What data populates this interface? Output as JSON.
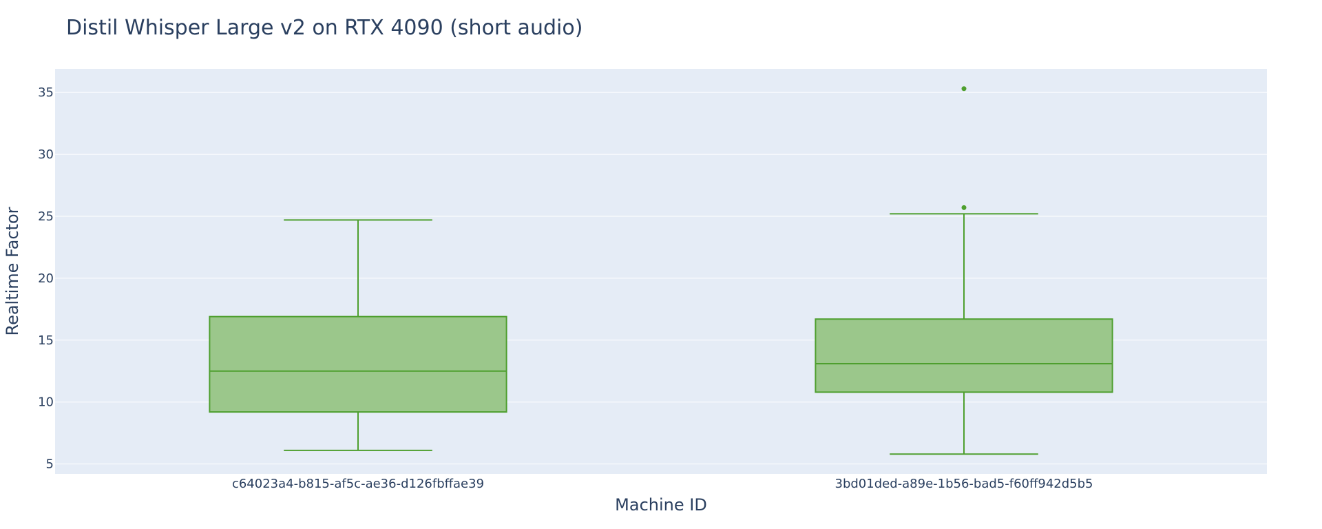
{
  "colors": {
    "plot_bg": "#e5ecf6",
    "grid": "#ffffff",
    "text": "#2a3f5f",
    "box_line": "#4e9f2e",
    "box_fill": "#9bc78b"
  },
  "chart_data": {
    "type": "box",
    "title": "Distil Whisper Large v2 on RTX 4090 (short audio)",
    "xlabel": "Machine ID",
    "ylabel": "Realtime Factor",
    "ylim": [
      4.2,
      36.9
    ],
    "yticks": [
      5,
      10,
      15,
      20,
      25,
      30,
      35
    ],
    "grid": true,
    "legend": "none",
    "categories": [
      "c64023a4-b815-af5c-ae36-d126fbffae39",
      "3bd01ded-a89e-1b56-bad5-f60ff942d5b5"
    ],
    "boxes": [
      {
        "category": "c64023a4-b815-af5c-ae36-d126fbffae39",
        "lower_whisker": 6.1,
        "q1": 9.2,
        "median": 12.5,
        "q3": 16.9,
        "upper_whisker": 24.7,
        "outliers": []
      },
      {
        "category": "3bd01ded-a89e-1b56-bad5-f60ff942d5b5",
        "lower_whisker": 5.8,
        "q1": 10.8,
        "median": 13.1,
        "q3": 16.7,
        "upper_whisker": 25.2,
        "outliers": [
          25.7,
          35.3
        ]
      }
    ]
  }
}
